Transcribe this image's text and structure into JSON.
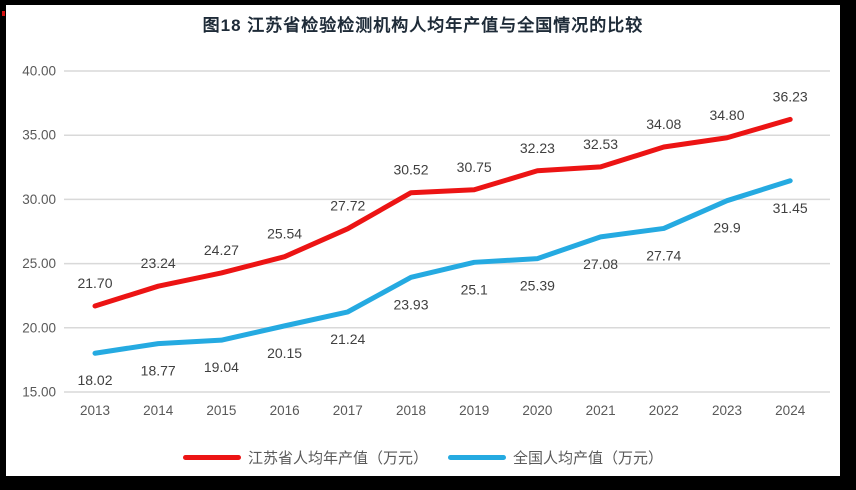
{
  "title": "图18  江苏省检验检测机构人均年产值与全国情况的比较",
  "colors": {
    "jiangsu_line": "#ec1414",
    "national_line": "#25aae1",
    "gridline": "#d9d9d9",
    "axis_text": "#595959",
    "data_label_text": "#404040",
    "title_text": "#1e2b38",
    "frame": "#000000"
  },
  "chart_data": {
    "type": "line",
    "title": "图18  江苏省检验检测机构人均年产值与全国情况的比较",
    "x": [
      "2013",
      "2014",
      "2015",
      "2016",
      "2017",
      "2018",
      "2019",
      "2020",
      "2021",
      "2022",
      "2023",
      "2024"
    ],
    "series": [
      {
        "name": "江苏省人均年产值（万元）",
        "color": "#ec1414",
        "values": [
          21.7,
          23.24,
          24.27,
          25.54,
          27.72,
          30.52,
          30.75,
          32.23,
          32.53,
          34.08,
          34.8,
          36.23
        ],
        "labels": [
          "21.70",
          "23.24",
          "24.27",
          "25.54",
          "27.72",
          "30.52",
          "30.75",
          "32.23",
          "32.53",
          "34.08",
          "34.80",
          "36.23"
        ],
        "label_position": "above"
      },
      {
        "name": "全国人均产值（万元）",
        "color": "#25aae1",
        "values": [
          18.02,
          18.77,
          19.04,
          20.15,
          21.24,
          23.93,
          25.1,
          25.39,
          27.08,
          27.74,
          29.9,
          31.45
        ],
        "labels": [
          "18.02",
          "18.77",
          "19.04",
          "20.15",
          "21.24",
          "23.93",
          "25.1",
          "25.39",
          "27.08",
          "27.74",
          "29.9",
          "31.45"
        ],
        "label_position": "below"
      }
    ],
    "xlabel": "",
    "ylabel": "",
    "ylim": [
      15,
      40
    ],
    "ytick_values": [
      15,
      20,
      25,
      30,
      35,
      40
    ],
    "ytick_labels": [
      "15.00",
      "20.00",
      "25.00",
      "30.00",
      "35.00",
      "40.00"
    ],
    "grid": true,
    "legend_position": "bottom"
  },
  "legend": {
    "items": [
      {
        "label": "江苏省人均年产值（万元）"
      },
      {
        "label": "全国人均产值（万元）"
      }
    ]
  }
}
